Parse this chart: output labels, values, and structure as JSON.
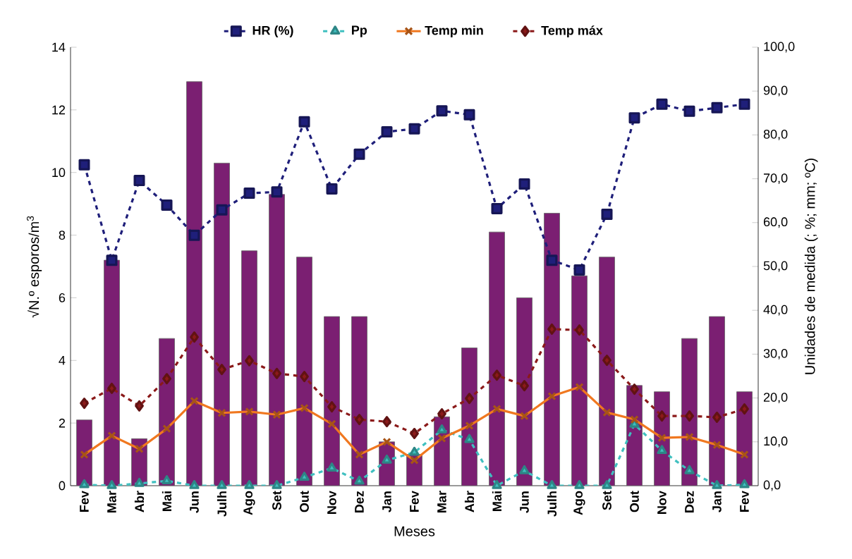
{
  "chart_data": {
    "type": "bar",
    "xlabel": "Meses",
    "ylabel": "√N.º esporos/m$^{3}$",
    "y2label": "Unidades de medida (; %; mm; ºC)",
    "categories": [
      "Fev",
      "Mar",
      "Abr",
      "Mai",
      "Jun",
      "Julh",
      "Ago",
      "Set",
      "Out",
      "Nov",
      "Dez",
      "Jan",
      "Fev",
      "Mar",
      "Abr",
      "Mai",
      "Jun",
      "Julh",
      "Ago",
      "Set",
      "Out",
      "Nov",
      "Dez",
      "Jan",
      "Fev"
    ],
    "ylim": [
      0,
      14
    ],
    "yticks": [
      0,
      2,
      4,
      6,
      8,
      10,
      12,
      14
    ],
    "y2lim": [
      0,
      100
    ],
    "y2ticks": [
      {
        "value": 0,
        "label": "0,0"
      },
      {
        "value": 10,
        "label": "10,0"
      },
      {
        "value": 20,
        "label": "20,0"
      },
      {
        "value": 30,
        "label": "30,0"
      },
      {
        "value": 40,
        "label": "40,0"
      },
      {
        "value": 50,
        "label": "50,0"
      },
      {
        "value": 60,
        "label": "60,0"
      },
      {
        "value": 70,
        "label": "70,0"
      },
      {
        "value": 80,
        "label": "80,0"
      },
      {
        "value": 90,
        "label": "90,0"
      },
      {
        "value": 100,
        "label": "100,0"
      }
    ],
    "legend": "top",
    "series": [
      {
        "color": "#7b1f72",
        "values": [
          2.1,
          7.2,
          1.5,
          4.7,
          12.9,
          10.3,
          7.5,
          9.3,
          7.3,
          5.4,
          5.4,
          1.4,
          1.0,
          2.2,
          4.4,
          8.1,
          6.0,
          8.7,
          6.7,
          7.3,
          3.2,
          3.0,
          4.7,
          5.4,
          3.0
        ]
      },
      {
        "type": "line",
        "axis": "y2",
        "name": "HR (%)",
        "color": "#1f1f7a",
        "marker": "square",
        "line_style": "dashed",
        "values": [
          73.2,
          51.4,
          69.6,
          64.0,
          57.1,
          62.9,
          66.7,
          67.0,
          83.0,
          67.7,
          75.6,
          80.7,
          81.4,
          85.5,
          84.6,
          63.2,
          68.8,
          51.4,
          49.2,
          61.9,
          83.9,
          87.0,
          85.4,
          86.2,
          87.0
        ]
      },
      {
        "type": "line",
        "axis": "y2",
        "name": "Pp",
        "color": "#40c0c0",
        "marker": "triangle",
        "line_style": "dashed",
        "values": [
          0.2,
          0,
          0.5,
          1.1,
          0,
          0,
          0,
          0,
          1.9,
          4.0,
          1.0,
          5.8,
          7.6,
          12.7,
          10.5,
          0,
          3.4,
          0,
          0,
          0,
          14.0,
          8.0,
          3.4,
          0,
          0.2
        ]
      },
      {
        "type": "line",
        "axis": "y2",
        "name": "Temp min",
        "color": "#f07820",
        "marker": "cross",
        "line_style": "solid",
        "values": [
          7.1,
          11.4,
          8.4,
          13.0,
          19.3,
          16.6,
          16.9,
          16.2,
          17.7,
          14.1,
          7.1,
          10.0,
          5.8,
          10.8,
          13.7,
          17.5,
          15.9,
          20.4,
          22.5,
          16.7,
          15.1,
          10.9,
          11.1,
          9.3,
          7.1
        ]
      },
      {
        "type": "line",
        "axis": "y2",
        "name": "Temp máx",
        "color": "#8b1a1a",
        "marker": "diamond",
        "line_style": "dashed",
        "values": [
          18.8,
          22.2,
          18.2,
          24.4,
          33.9,
          26.5,
          28.5,
          25.6,
          24.9,
          18.0,
          15.1,
          14.6,
          11.9,
          16.4,
          19.9,
          25.2,
          22.8,
          35.7,
          35.5,
          28.6,
          22.0,
          15.9,
          15.9,
          15.6,
          17.5
        ]
      }
    ]
  }
}
